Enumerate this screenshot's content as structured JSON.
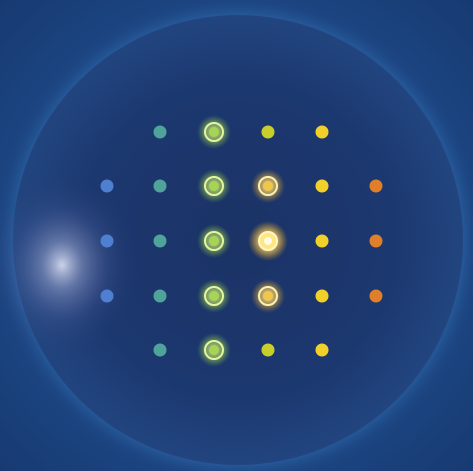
{
  "scene": {
    "description_free": true,
    "colors": {
      "background": "#1d4584",
      "halo": "#6fb0e8",
      "disc_center": "#1c3568",
      "disc_edge": "#1a3a78",
      "glare": "#c8d0e8",
      "blue_dot": "#4f7fd0",
      "teal_dot": "#4fa39a",
      "green_glow": "#a8d455",
      "lime_dot": "#c8cf2a",
      "yellow_dot": "#f2d02a",
      "gold_glow": "#f2c64a",
      "orange_dot": "#e07f2a"
    },
    "dot_grid": {
      "rows": 5,
      "columns": 6,
      "cells": [
        [
          "empty",
          "teal",
          "green-ring",
          "lime",
          "yellow",
          "empty"
        ],
        [
          "blue",
          "teal",
          "green-ring",
          "gold-ring",
          "yellow",
          "orange"
        ],
        [
          "blue",
          "teal",
          "green-ring",
          "gold-bright",
          "yellow",
          "orange"
        ],
        [
          "blue",
          "teal",
          "green-ring",
          "gold-ring",
          "yellow",
          "orange"
        ],
        [
          "empty",
          "teal",
          "green-ring",
          "lime",
          "yellow",
          "empty"
        ]
      ]
    }
  }
}
